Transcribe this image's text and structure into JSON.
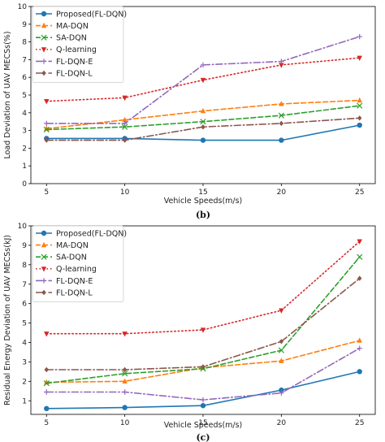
{
  "chart_data": [
    {
      "type": "line",
      "caption": "(b)",
      "xlabel": "Vehicle Speeds(m/s)",
      "ylabel": "Load Deviation of UAV MECSs(%)",
      "x": [
        5,
        10,
        15,
        20,
        25
      ],
      "xticks": [
        "5",
        "10",
        "15",
        "20",
        "25"
      ],
      "ylim": [
        0,
        10
      ],
      "yticks": [
        "0",
        "1",
        "2",
        "3",
        "4",
        "5",
        "6",
        "7",
        "8",
        "9",
        "10"
      ],
      "legend_position": "upper-left",
      "series": [
        {
          "name": "Proposed(FL-DQN)",
          "values": [
            2.55,
            2.55,
            2.45,
            2.45,
            3.3
          ],
          "color": "#1f77b4",
          "dash": "solid",
          "marker": "circle"
        },
        {
          "name": "MA-DQN",
          "values": [
            3.1,
            3.6,
            4.1,
            4.5,
            4.7
          ],
          "color": "#ff7f0e",
          "dash": "dashed",
          "marker": "triangle-up"
        },
        {
          "name": "SA-DQN",
          "values": [
            3.05,
            3.2,
            3.5,
            3.85,
            4.4
          ],
          "color": "#2ca02c",
          "dash": "dashed",
          "marker": "x"
        },
        {
          "name": "Q-learning",
          "values": [
            4.65,
            4.85,
            5.85,
            6.7,
            7.1
          ],
          "color": "#d62728",
          "dash": "dotted",
          "marker": "triangle-down"
        },
        {
          "name": "FL-DQN-E",
          "values": [
            3.4,
            3.4,
            6.7,
            6.9,
            8.3
          ],
          "color": "#9467bd",
          "dash": "dashdot",
          "marker": "plus"
        },
        {
          "name": "FL-DQN-L",
          "values": [
            2.45,
            2.45,
            3.2,
            3.4,
            3.7
          ],
          "color": "#8c564b",
          "dash": "dashdot",
          "marker": "diamond"
        }
      ]
    },
    {
      "type": "line",
      "caption": "(c)",
      "xlabel": "Vehicle Speeds(m/s)",
      "ylabel": "Residual Energy Deviation of UAV MECSs(kJ)",
      "x": [
        5,
        10,
        15,
        20,
        25
      ],
      "xticks": [
        "5",
        "10",
        "15",
        "20",
        "25"
      ],
      "ylim": [
        0.3,
        10
      ],
      "yticks": [
        "1",
        "2",
        "3",
        "4",
        "5",
        "6",
        "7",
        "8",
        "9",
        "10"
      ],
      "legend_position": "upper-left",
      "series": [
        {
          "name": "Proposed(FL-DQN)",
          "values": [
            0.6,
            0.65,
            0.75,
            1.55,
            2.5
          ],
          "color": "#1f77b4",
          "dash": "solid",
          "marker": "circle"
        },
        {
          "name": "MA-DQN",
          "values": [
            1.95,
            2.0,
            2.7,
            3.05,
            4.1
          ],
          "color": "#ff7f0e",
          "dash": "dashed",
          "marker": "triangle-up"
        },
        {
          "name": "SA-DQN",
          "values": [
            1.9,
            2.4,
            2.65,
            3.6,
            8.4
          ],
          "color": "#2ca02c",
          "dash": "dashed",
          "marker": "x"
        },
        {
          "name": "Q-learning",
          "values": [
            4.45,
            4.45,
            4.65,
            5.65,
            9.2
          ],
          "color": "#d62728",
          "dash": "dotted",
          "marker": "triangle-down"
        },
        {
          "name": "FL-DQN-E",
          "values": [
            1.45,
            1.45,
            1.05,
            1.4,
            3.7
          ],
          "color": "#9467bd",
          "dash": "dashdot",
          "marker": "plus"
        },
        {
          "name": "FL-DQN-L",
          "values": [
            2.6,
            2.6,
            2.75,
            4.05,
            7.3
          ],
          "color": "#8c564b",
          "dash": "dashdot",
          "marker": "diamond"
        }
      ]
    }
  ]
}
